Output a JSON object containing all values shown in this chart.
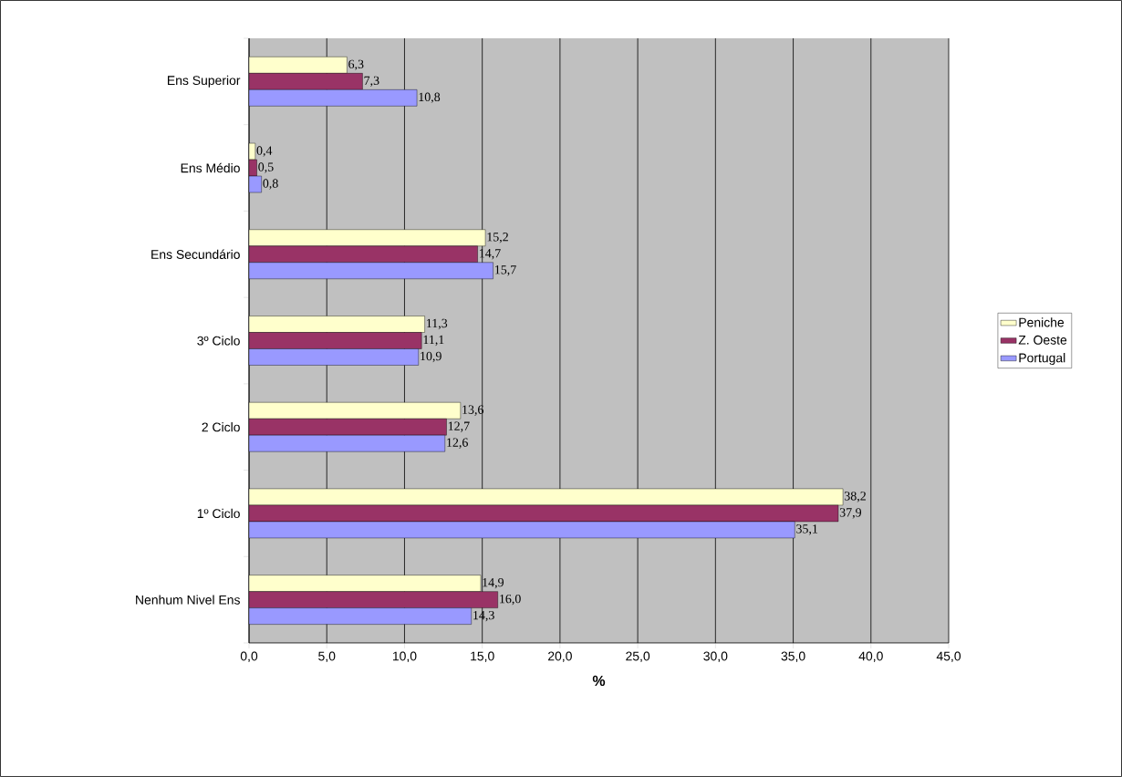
{
  "chart_data": {
    "type": "bar",
    "orientation": "horizontal",
    "xlabel": "%",
    "categories": [
      "Ens Superior",
      "Ens Médio",
      "Ens Secundário",
      "3º Ciclo",
      "2 Ciclo",
      "1º Ciclo",
      "Nenhum Nivel Ens"
    ],
    "series": [
      {
        "name": "Peniche",
        "color": "#ffffcc",
        "values": [
          6.3,
          0.4,
          15.2,
          11.3,
          13.6,
          38.2,
          14.9
        ],
        "value_labels": [
          "6,3",
          "0,4",
          "15,2",
          "11,3",
          "13,6",
          "38,2",
          "14,9"
        ]
      },
      {
        "name": "Z. Oeste",
        "color": "#993366",
        "values": [
          7.3,
          0.5,
          14.7,
          11.1,
          12.7,
          37.9,
          16.0
        ],
        "value_labels": [
          "7,3",
          "0,5",
          "14,7",
          "11,1",
          "12,7",
          "37,9",
          "16,0"
        ]
      },
      {
        "name": "Portugal",
        "color": "#9999ff",
        "values": [
          10.8,
          0.8,
          15.7,
          10.9,
          12.6,
          35.1,
          14.3
        ],
        "value_labels": [
          "10,8",
          "0,8",
          "15,7",
          "10,9",
          "12,6",
          "35,1",
          "14,3"
        ]
      }
    ],
    "xlim": [
      0,
      45
    ],
    "xticks": [
      {
        "value": 0,
        "label": "0,0"
      },
      {
        "value": 5,
        "label": "5,0"
      },
      {
        "value": 10,
        "label": "10,0"
      },
      {
        "value": 15,
        "label": "15,0"
      },
      {
        "value": 20,
        "label": "20,0"
      },
      {
        "value": 25,
        "label": "25,0"
      },
      {
        "value": 30,
        "label": "30,0"
      },
      {
        "value": 35,
        "label": "35,0"
      },
      {
        "value": 40,
        "label": "40,0"
      },
      {
        "value": 45,
        "label": "45,0"
      }
    ],
    "grid": "x",
    "legend": "right"
  }
}
